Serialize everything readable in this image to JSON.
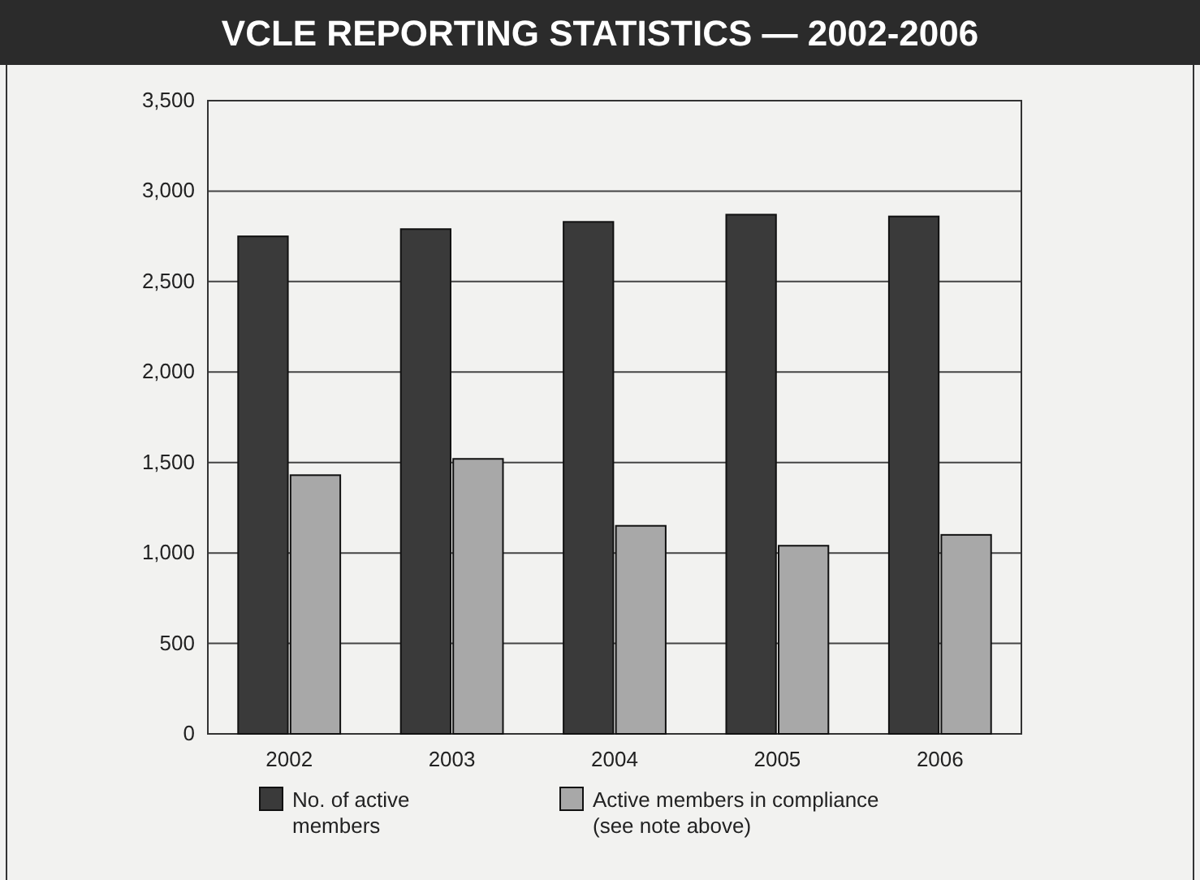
{
  "chart_data": {
    "type": "bar",
    "title": "VCLE REPORTING STATISTICS — 2002-2006",
    "categories": [
      "2002",
      "2003",
      "2004",
      "2005",
      "2006"
    ],
    "series": [
      {
        "name": "No. of active members",
        "color": "#3a3a3a",
        "values": [
          2750,
          2790,
          2830,
          2870,
          2860
        ]
      },
      {
        "name": "Active members in compliance (see note above)",
        "color": "#a8a8a8",
        "values": [
          1430,
          1520,
          1150,
          1040,
          1100
        ]
      }
    ],
    "ylim": [
      0,
      3500
    ],
    "yticks": [
      {
        "value": 0,
        "label": "0"
      },
      {
        "value": 500,
        "label": "500"
      },
      {
        "value": 1000,
        "label": "1,000"
      },
      {
        "value": 1500,
        "label": "1,500"
      },
      {
        "value": 2000,
        "label": "2,000"
      },
      {
        "value": 2500,
        "label": "2,500"
      },
      {
        "value": 3000,
        "label": "3,000"
      },
      {
        "value": 3500,
        "label": "3,500"
      }
    ],
    "grid": "y",
    "legend": "bottom"
  }
}
